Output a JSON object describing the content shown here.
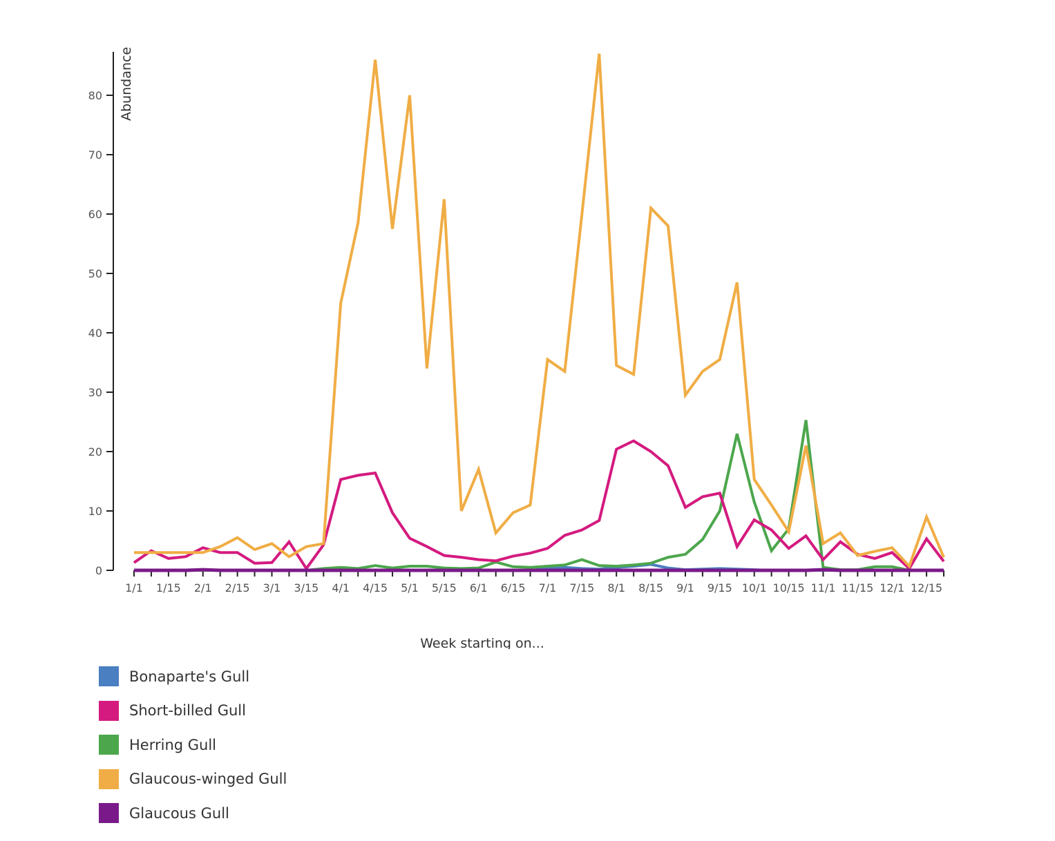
{
  "chart_data": {
    "type": "line",
    "title": "",
    "xlabel": "Week starting on...",
    "ylabel": "Abundance",
    "ylim": [
      0,
      88
    ],
    "yticks": [
      0,
      10,
      20,
      30,
      40,
      50,
      60,
      70,
      80
    ],
    "grid": false,
    "legend_position": "bottom-left",
    "x": [
      "1/1",
      "1/8",
      "1/15",
      "1/22",
      "2/1",
      "2/8",
      "2/15",
      "2/22",
      "3/1",
      "3/8",
      "3/15",
      "3/22",
      "4/1",
      "4/8",
      "4/15",
      "4/22",
      "5/1",
      "5/8",
      "5/15",
      "5/22",
      "6/1",
      "6/8",
      "6/15",
      "6/22",
      "7/1",
      "7/8",
      "7/15",
      "7/22",
      "8/1",
      "8/8",
      "8/15",
      "8/22",
      "9/1",
      "9/8",
      "9/15",
      "9/22",
      "10/1",
      "10/8",
      "10/15",
      "10/22",
      "11/1",
      "11/8",
      "11/15",
      "11/22",
      "12/1",
      "12/8",
      "12/15",
      "12/22"
    ],
    "xtick_labels": [
      "1/1",
      "1/15",
      "2/1",
      "2/15",
      "3/1",
      "3/15",
      "4/1",
      "4/15",
      "5/1",
      "5/15",
      "6/1",
      "6/15",
      "7/1",
      "7/15",
      "8/1",
      "8/15",
      "9/1",
      "9/15",
      "10/1",
      "10/15",
      "11/1",
      "11/15",
      "12/1",
      "12/15"
    ],
    "series": [
      {
        "name": "Bonaparte's Gull",
        "color": "#4a7fc1",
        "values": [
          0,
          0,
          0,
          0,
          0,
          0,
          0,
          0,
          0,
          0,
          0,
          0,
          0,
          0,
          0,
          0,
          0,
          0,
          0,
          0,
          0,
          0,
          0,
          0,
          0.3,
          0.5,
          0.3,
          0.2,
          0.5,
          0.7,
          1.0,
          0.4,
          0.1,
          0.2,
          0.3,
          0.2,
          0.1,
          0,
          0,
          0,
          0,
          0,
          0,
          0,
          0,
          0,
          0,
          0
        ]
      },
      {
        "name": "Short-billed Gull",
        "color": "#d41a7f",
        "values": [
          1.3,
          3.3,
          2.0,
          2.3,
          3.8,
          3.0,
          3.0,
          1.2,
          1.3,
          4.8,
          0.3,
          4.3,
          15.3,
          16.0,
          16.4,
          9.7,
          5.4,
          4.0,
          2.5,
          2.2,
          1.8,
          1.6,
          2.4,
          2.9,
          3.7,
          5.9,
          6.8,
          8.4,
          20.4,
          21.8,
          20.0,
          17.6,
          10.6,
          12.4,
          13.0,
          4.0,
          8.5,
          6.8,
          3.7,
          5.8,
          1.8,
          4.8,
          2.7,
          2.0,
          3.0,
          0.3,
          5.3,
          1.5
        ]
      },
      {
        "name": "Herring Gull",
        "color": "#4ca64c",
        "values": [
          0,
          0,
          0,
          0,
          0,
          0,
          0,
          0,
          0,
          0,
          0,
          0.3,
          0.5,
          0.3,
          0.8,
          0.4,
          0.7,
          0.7,
          0.4,
          0.3,
          0.4,
          1.4,
          0.6,
          0.5,
          0.7,
          0.9,
          1.8,
          0.8,
          0.7,
          0.9,
          1.2,
          2.2,
          2.7,
          5.2,
          10.0,
          23.0,
          11.5,
          3.3,
          7.0,
          25.3,
          0.5,
          0.1,
          0.1,
          0.6,
          0.6,
          0,
          0,
          0
        ]
      },
      {
        "name": "Glaucous-winged Gull",
        "color": "#f0ad45",
        "values": [
          3.0,
          3.0,
          3.0,
          3.0,
          3.0,
          4.0,
          5.5,
          3.5,
          4.5,
          2.3,
          4.0,
          4.5,
          45.0,
          58.5,
          86.0,
          57.5,
          80.0,
          34.0,
          62.5,
          10.0,
          17.0,
          6.3,
          9.7,
          11.0,
          35.5,
          33.5,
          60.0,
          87.0,
          34.5,
          33.0,
          61.0,
          58.0,
          29.5,
          33.5,
          35.5,
          48.5,
          15.3,
          11.0,
          6.5,
          21.0,
          4.5,
          6.3,
          2.5,
          3.2,
          3.8,
          0.7,
          9.0,
          2.2
        ]
      },
      {
        "name": "Glaucous Gull",
        "color": "#7a1a8a",
        "values": [
          0,
          0,
          0,
          0,
          0.1,
          0,
          0,
          0,
          0,
          0,
          0,
          0,
          0,
          0,
          0,
          0,
          0,
          0,
          0,
          0,
          0,
          0,
          0,
          0,
          0,
          0,
          0,
          0,
          0,
          0,
          0,
          0,
          0,
          0,
          0,
          0,
          0,
          0,
          0,
          0,
          0.1,
          0,
          0,
          0,
          0,
          0,
          0,
          0
        ]
      }
    ]
  }
}
